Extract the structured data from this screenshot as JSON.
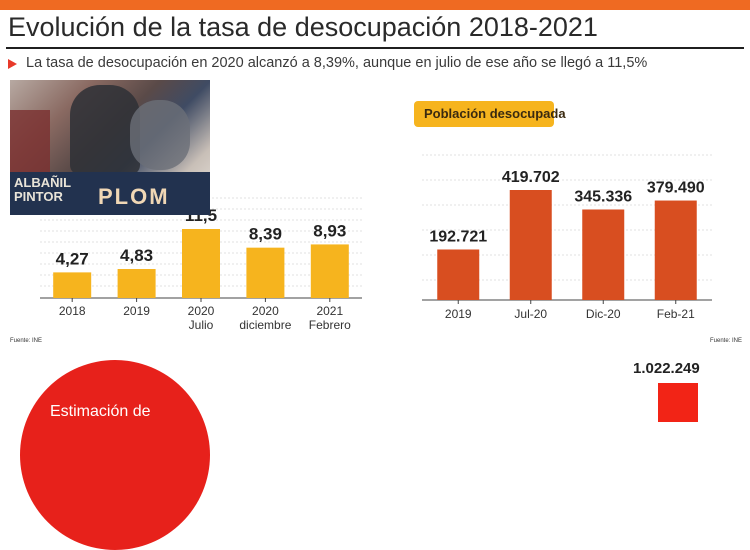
{
  "header": {
    "title": "Evolución de la tasa de desocupación 2018-2021",
    "subtitle": "La tasa de desocupación en 2020 alcanzó a 8,39%, aunque en julio de ese año se llegó a 11,5%"
  },
  "photo": {
    "sign_lines": [
      "ALBAÑIL",
      "PINTOR"
    ],
    "sign_big": "PLOM"
  },
  "colors": {
    "accent": "#ef6a22",
    "yellow_bars": "#f6b41e",
    "red_bars": "#d84e20",
    "circle": "#e7211b"
  },
  "chart_data": [
    {
      "type": "bar",
      "categories": [
        [
          "2018"
        ],
        [
          "2019"
        ],
        [
          "2020",
          "Julio"
        ],
        [
          "2020",
          "diciembre"
        ],
        [
          "2021",
          "Febrero"
        ]
      ],
      "values": [
        4.27,
        4.83,
        11.5,
        8.39,
        8.93
      ],
      "value_labels": [
        "4,27",
        "4,83",
        "11,5",
        "8,39",
        "8,93"
      ],
      "color": "#f6b41e",
      "source": "Fuente: INE"
    },
    {
      "type": "bar",
      "title": "Población desocupada",
      "categories": [
        "2019",
        "Jul-20",
        "Dic-20",
        "Feb-21"
      ],
      "values": [
        192721,
        419702,
        345336,
        379490
      ],
      "value_labels": [
        "192.721",
        "419.702",
        "345.336",
        "379.490"
      ],
      "color": "#d84e20",
      "source": "Fuente: INE"
    },
    {
      "type": "bar",
      "values": [
        1022249
      ],
      "value_labels": [
        "1.022.249"
      ],
      "color": "#f22416"
    }
  ],
  "bottom": {
    "circle_text": "Estimación de"
  }
}
